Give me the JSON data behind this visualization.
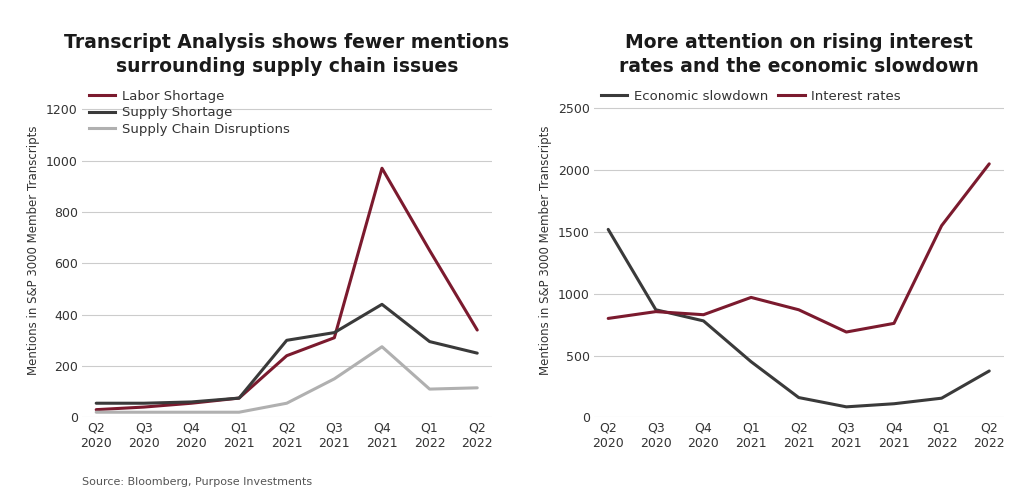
{
  "left_title": "Transcript Analysis shows fewer mentions\nsurrounding supply chain issues",
  "right_title": "More attention on rising interest\nrates and the economic slowdown",
  "ylabel": "Mentions in S&P 3000 Member Transcripts",
  "source": "Source: Bloomberg, Purpose Investments",
  "x_labels": [
    "Q2\n2020",
    "Q3\n2020",
    "Q4\n2020",
    "Q1\n2021",
    "Q2\n2021",
    "Q3\n2021",
    "Q4\n2021",
    "Q1\n2022",
    "Q2\n2022"
  ],
  "left_series": {
    "Labor Shortage": {
      "values": [
        30,
        40,
        55,
        75,
        240,
        310,
        970,
        650,
        340
      ],
      "color": "#7B1A2E",
      "linewidth": 2.2
    },
    "Supply Shortage": {
      "values": [
        55,
        55,
        60,
        75,
        300,
        330,
        440,
        295,
        250
      ],
      "color": "#3a3a3a",
      "linewidth": 2.2
    },
    "Supply Chain Disruptions": {
      "values": [
        20,
        20,
        20,
        20,
        55,
        150,
        275,
        110,
        115
      ],
      "color": "#b0b0b0",
      "linewidth": 2.2
    }
  },
  "left_ylim": [
    0,
    1300
  ],
  "left_yticks": [
    0,
    200,
    400,
    600,
    800,
    1000,
    1200
  ],
  "right_series": {
    "Economic slowdown": {
      "values": [
        1520,
        870,
        780,
        450,
        160,
        85,
        110,
        155,
        375
      ],
      "color": "#3a3a3a",
      "linewidth": 2.2
    },
    "Interest rates": {
      "values": [
        800,
        855,
        830,
        970,
        870,
        690,
        760,
        1550,
        2050
      ],
      "color": "#7B1A2E",
      "linewidth": 2.2
    }
  },
  "right_ylim": [
    0,
    2700
  ],
  "right_yticks": [
    0,
    500,
    1000,
    1500,
    2000,
    2500
  ],
  "background_color": "#ffffff",
  "grid_color": "#cccccc",
  "title_fontsize": 13.5,
  "label_fontsize": 8.5,
  "tick_fontsize": 9,
  "legend_fontsize": 9.5,
  "source_fontsize": 8
}
